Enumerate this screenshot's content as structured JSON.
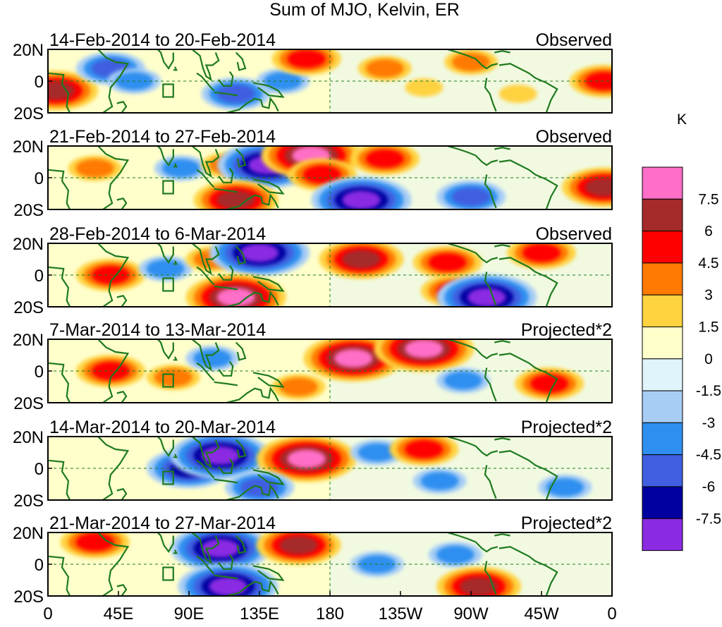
{
  "figure": {
    "title": "Sum of MJO, Kelvin, ER"
  },
  "panels": [
    {
      "dates": "14-Feb-2014 to 20-Feb-2014",
      "status": "Observed"
    },
    {
      "dates": "21-Feb-2014 to 27-Feb-2014",
      "status": "Observed"
    },
    {
      "dates": "28-Feb-2014 to 6-Mar-2014",
      "status": "Observed"
    },
    {
      "dates": "7-Mar-2014 to 13-Mar-2014",
      "status": "Projected*2"
    },
    {
      "dates": "14-Mar-2014 to 20-Mar-2014",
      "status": "Projected*2"
    },
    {
      "dates": "21-Mar-2014 to 27-Mar-2014",
      "status": "Projected*2"
    }
  ],
  "colorbar": {
    "unit": "K",
    "labels": [
      "7.5",
      "6",
      "4.5",
      "3",
      "1.5",
      "0",
      "-1.5",
      "-3",
      "-4.5",
      "-6",
      "-7.5"
    ],
    "colors": [
      "#ff6ec7",
      "#a52a2a",
      "#ff0000",
      "#ff7a00",
      "#ffd23f",
      "#ffffcc",
      "#dff4fb",
      "#a7cdf5",
      "#2f8ff0",
      "#3f5fe0",
      "#0000a0",
      "#8a2be2"
    ]
  },
  "colors": {
    "coast": "#1e7a1e",
    "zero_shade": "#ffffcc"
  },
  "chart_data": {
    "type": "heatmap",
    "variable": "Sum of MJO, Kelvin, ER",
    "unit": "K",
    "levels": [
      -7.5,
      -6,
      -4.5,
      -3,
      -1.5,
      0,
      1.5,
      3,
      4.5,
      6,
      7.5
    ],
    "x_ticks": [
      "0",
      "45E",
      "90E",
      "135E",
      "180",
      "135W",
      "90W",
      "45W",
      "0"
    ],
    "x_tick_lon": [
      0,
      45,
      90,
      135,
      180,
      225,
      270,
      315,
      360
    ],
    "y_ticks": [
      "20N",
      "0",
      "20S"
    ],
    "y_tick_lat": [
      20,
      0,
      -20
    ],
    "xlim": [
      0,
      360
    ],
    "ylim": [
      -20,
      20
    ],
    "panels": [
      {
        "anomalies": [
          {
            "lon": 5,
            "lat": -6,
            "value": 6
          },
          {
            "lon": 40,
            "lat": 8,
            "value": -4.5
          },
          {
            "lon": 55,
            "lat": 0,
            "value": -3
          },
          {
            "lon": 120,
            "lat": -8,
            "value": -4.5
          },
          {
            "lon": 150,
            "lat": 0,
            "value": -3
          },
          {
            "lon": 165,
            "lat": 14,
            "value": 4.5
          },
          {
            "lon": 215,
            "lat": 8,
            "value": 3
          },
          {
            "lon": 270,
            "lat": 12,
            "value": 3
          },
          {
            "lon": 240,
            "lat": -4,
            "value": 1.5
          },
          {
            "lon": 300,
            "lat": -8,
            "value": 1.5
          },
          {
            "lon": 355,
            "lat": 0,
            "value": 4.5
          }
        ]
      },
      {
        "anomalies": [
          {
            "lon": 30,
            "lat": 6,
            "value": 3
          },
          {
            "lon": 85,
            "lat": 6,
            "value": -3
          },
          {
            "lon": 115,
            "lat": 8,
            "value": 3
          },
          {
            "lon": 140,
            "lat": 8,
            "value": -7.5
          },
          {
            "lon": 168,
            "lat": 14,
            "value": 7.5
          },
          {
            "lon": 175,
            "lat": 2,
            "value": 4.5
          },
          {
            "lon": 120,
            "lat": -14,
            "value": 6
          },
          {
            "lon": 200,
            "lat": -14,
            "value": -7.5
          },
          {
            "lon": 215,
            "lat": 12,
            "value": 4.5
          },
          {
            "lon": 270,
            "lat": -12,
            "value": -4.5
          },
          {
            "lon": 355,
            "lat": -6,
            "value": 6
          }
        ]
      },
      {
        "anomalies": [
          {
            "lon": 40,
            "lat": 0,
            "value": 4.5
          },
          {
            "lon": 75,
            "lat": 4,
            "value": -3
          },
          {
            "lon": 105,
            "lat": 10,
            "value": 3
          },
          {
            "lon": 135,
            "lat": 14,
            "value": -7.5
          },
          {
            "lon": 120,
            "lat": -14,
            "value": 7.5
          },
          {
            "lon": 200,
            "lat": 10,
            "value": 6
          },
          {
            "lon": 255,
            "lat": 8,
            "value": 4.5
          },
          {
            "lon": 260,
            "lat": -10,
            "value": 4.5
          },
          {
            "lon": 280,
            "lat": -14,
            "value": -7.5
          },
          {
            "lon": 315,
            "lat": 14,
            "value": 4.5
          }
        ]
      },
      {
        "anomalies": [
          {
            "lon": 40,
            "lat": 0,
            "value": 4.5
          },
          {
            "lon": 80,
            "lat": -4,
            "value": 3
          },
          {
            "lon": 105,
            "lat": 8,
            "value": -3
          },
          {
            "lon": 195,
            "lat": 8,
            "value": 7.5
          },
          {
            "lon": 240,
            "lat": 14,
            "value": 7.5
          },
          {
            "lon": 160,
            "lat": -10,
            "value": 3
          },
          {
            "lon": 265,
            "lat": -6,
            "value": -3
          },
          {
            "lon": 320,
            "lat": -8,
            "value": 4.5
          }
        ]
      },
      {
        "anomalies": [
          {
            "lon": 90,
            "lat": 0,
            "value": -6
          },
          {
            "lon": 110,
            "lat": 8,
            "value": -7.5
          },
          {
            "lon": 165,
            "lat": 6,
            "value": 7.5
          },
          {
            "lon": 135,
            "lat": -12,
            "value": -4.5
          },
          {
            "lon": 210,
            "lat": 10,
            "value": -3
          },
          {
            "lon": 240,
            "lat": 12,
            "value": 4.5
          },
          {
            "lon": 250,
            "lat": -8,
            "value": -3
          },
          {
            "lon": 330,
            "lat": -12,
            "value": -3
          }
        ]
      },
      {
        "anomalies": [
          {
            "lon": 110,
            "lat": 10,
            "value": -7.5
          },
          {
            "lon": 160,
            "lat": 12,
            "value": 6
          },
          {
            "lon": 115,
            "lat": -14,
            "value": -7.5
          },
          {
            "lon": 210,
            "lat": 0,
            "value": -3
          },
          {
            "lon": 260,
            "lat": 6,
            "value": -3
          },
          {
            "lon": 275,
            "lat": -14,
            "value": 6
          },
          {
            "lon": 30,
            "lat": 14,
            "value": 4.5
          }
        ]
      }
    ]
  }
}
